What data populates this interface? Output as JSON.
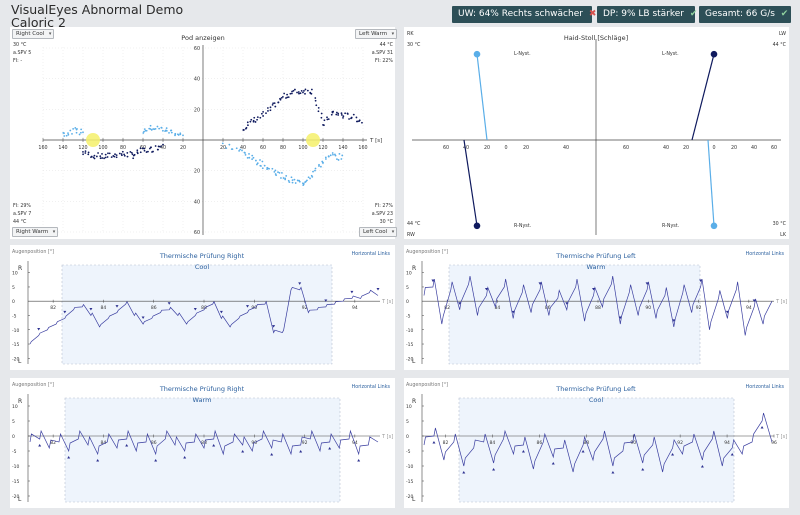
{
  "header": {
    "title_line1": "VisualEyes Abnormal Demo",
    "title_line2": "Caloric 2",
    "badges": [
      {
        "text": "UW: 64% Rechts schwächer",
        "icon": "x-icon",
        "color": "#d9534f"
      },
      {
        "text": "DP: 9% LB stärker",
        "icon": "check-icon",
        "color": "#8fd19e"
      },
      {
        "text": "Gesamt: 66  G/s",
        "icon": "check-icon",
        "color": "#8fd19e"
      }
    ]
  },
  "pod": {
    "title": "Pod anzeigen",
    "dropdowns": {
      "tl": "Right Cool",
      "tr": "Left Warm",
      "bl": "Right Warm",
      "br": "Left Cool"
    },
    "quadrant_info": {
      "tl": [
        "30 °C",
        "a.SPV 5",
        "FI: -"
      ],
      "tr": [
        "44 °C",
        "a.SPV 31",
        "FI: 22%"
      ],
      "bl": [
        "FI: 29%",
        "a.SPV 7",
        "44 °C"
      ],
      "br": [
        "FI: 27%",
        "a.SPV 23",
        "30 °C"
      ]
    },
    "axis_unit": "T [s]",
    "x_ticks_left": [
      "160",
      "140",
      "120",
      "100",
      "80",
      "60",
      "40",
      "20"
    ],
    "x_ticks_right": [
      "20",
      "40",
      "60",
      "80",
      "100",
      "120",
      "140",
      "160"
    ],
    "y_ticks_up": [
      "60",
      "40",
      "20"
    ],
    "y_ticks_down": [
      "20",
      "40",
      "60"
    ]
  },
  "haid": {
    "title": "Haid-Stoll [Schläge]",
    "corners": {
      "tl": "RK",
      "tr": "LW",
      "bl": "RW",
      "br": "LK"
    },
    "temps": {
      "tl": "30 °C",
      "tr": "44 °C",
      "bl": "44 °C",
      "br": "30 °C"
    },
    "labels": {
      "l_nyst_left": "L-Nyst.",
      "l_nyst_right": "L-Nyst.",
      "r_nyst_left": "R-Nyst.",
      "r_nyst_right": "R-Nyst."
    },
    "x_ticks": [
      "60",
      "40",
      "20",
      "0",
      "20",
      "40",
      "60",
      "60",
      "40",
      "20",
      "0",
      "20",
      "40",
      "60"
    ],
    "colors": {
      "cool": "#5aaee8",
      "warm": "#0f1a5e"
    }
  },
  "traces": [
    {
      "title": "Thermische Prüfung Right",
      "sub": "Cool",
      "mode": "Horizontal Links",
      "ylabel": "Augenposition [°]",
      "t_label": "T [s]",
      "x_ticks": [
        "82",
        "84",
        "86",
        "88",
        "90",
        "92",
        "94"
      ],
      "y_ticks": [
        "10",
        "5",
        "0",
        "-5",
        "-10",
        "-15",
        "-20"
      ],
      "r": "R",
      "l": "L"
    },
    {
      "title": "Thermische Prüfung Left",
      "sub": "Warm",
      "mode": "Horizontal Links",
      "ylabel": "Augenposition [°]",
      "t_label": "T [s]",
      "x_ticks": [
        "82",
        "84",
        "86",
        "88",
        "90",
        "92",
        "94"
      ],
      "y_ticks": [
        "10",
        "5",
        "0",
        "-5",
        "-10",
        "-15",
        "-20"
      ],
      "r": "R",
      "l": "L"
    },
    {
      "title": "Thermische Prüfung Right",
      "sub": "Warm",
      "mode": "Horizontal Links",
      "ylabel": "Augenposition [°]",
      "t_label": "T [s]",
      "x_ticks": [
        "82",
        "84",
        "86",
        "88",
        "90",
        "92",
        "94"
      ],
      "y_ticks": [
        "10",
        "5",
        "0",
        "-5",
        "-10",
        "-15",
        "-20"
      ],
      "r": "R",
      "l": "L"
    },
    {
      "title": "Thermische Prüfung Left",
      "sub": "Cool",
      "mode": "Horizontal Links",
      "ylabel": "Augenposition [°]",
      "t_label": "T [s]",
      "x_ticks": [
        "82",
        "84",
        "86",
        "88",
        "90",
        "92",
        "94",
        "96"
      ],
      "y_ticks": [
        "10",
        "5",
        "0",
        "-5",
        "-10",
        "-15",
        "-20"
      ],
      "r": "R",
      "l": "L"
    }
  ],
  "chart_data": [
    {
      "type": "scatter",
      "title": "Pod anzeigen",
      "xlabel": "T [s]",
      "xlim": [
        -160,
        160
      ],
      "ylim": [
        -60,
        60
      ],
      "series": [
        {
          "color": "#0f1a5e",
          "points": [
            [
              -120,
              -8
            ],
            [
              -110,
              -10
            ],
            [
              -100,
              -11
            ],
            [
              -90,
              -10
            ],
            [
              -80,
              -9
            ],
            [
              -70,
              -10
            ],
            [
              -60,
              -7
            ],
            [
              -50,
              -6
            ],
            [
              -40,
              -3
            ],
            [
              40,
              8
            ],
            [
              50,
              12
            ],
            [
              60,
              16
            ],
            [
              70,
              22
            ],
            [
              80,
              28
            ],
            [
              90,
              31
            ],
            [
              100,
              32
            ],
            [
              110,
              32
            ],
            [
              120,
              10
            ],
            [
              130,
              18
            ],
            [
              140,
              16
            ],
            [
              150,
              15
            ],
            [
              160,
              12
            ]
          ]
        },
        {
          "color": "#5aaee8",
          "points": [
            [
              -140,
              4
            ],
            [
              -130,
              6
            ],
            [
              -120,
              5
            ],
            [
              -60,
              6
            ],
            [
              -50,
              8
            ],
            [
              -40,
              7
            ],
            [
              -30,
              5
            ],
            [
              -20,
              3
            ],
            [
              20,
              -3
            ],
            [
              40,
              -8
            ],
            [
              50,
              -12
            ],
            [
              60,
              -16
            ],
            [
              70,
              -20
            ],
            [
              80,
              -24
            ],
            [
              90,
              -27
            ],
            [
              100,
              -28
            ],
            [
              110,
              -22
            ],
            [
              120,
              -14
            ],
            [
              130,
              -10
            ],
            [
              140,
              -12
            ]
          ]
        }
      ]
    },
    {
      "type": "line",
      "title": "Haid-Stoll [Schläge]",
      "series": [
        {
          "name": "L-Nyst.",
          "color": "#5aaee8",
          "points": [
            [
              0,
              60
            ],
            [
              10,
              0
            ]
          ]
        },
        {
          "name": "R-Nyst.",
          "color": "#0f1a5e",
          "points": [
            [
              0,
              -60
            ],
            [
              -13,
              0
            ]
          ]
        },
        {
          "name": "L-Nyst.",
          "color": "#0f1a5e",
          "points": [
            [
              0,
              60
            ],
            [
              -22,
              0
            ]
          ]
        },
        {
          "name": "R-Nyst.",
          "color": "#5aaee8",
          "points": [
            [
              0,
              -60
            ],
            [
              -6,
              0
            ]
          ]
        }
      ]
    },
    {
      "type": "line",
      "title": "Thermische Prüfung Right",
      "xlim": [
        81,
        95
      ],
      "ylim": [
        -22,
        12
      ],
      "values": [
        -15,
        -12,
        -10,
        -8,
        -6,
        -3,
        -2,
        -5,
        -9,
        -6,
        -4,
        -1,
        -5,
        -8,
        -6,
        -4,
        -3,
        -5,
        -8,
        -5,
        -3,
        -1,
        -6,
        -9,
        -6,
        -4,
        -2,
        -1,
        -11,
        -11,
        4,
        4,
        -4,
        -3,
        -2,
        -1,
        0,
        1,
        1,
        3,
        2
      ]
    },
    {
      "type": "line",
      "title": "Thermische Prüfung Left",
      "xlim": [
        81,
        95
      ],
      "ylim": [
        -22,
        12
      ],
      "values": [
        2,
        5,
        -8,
        4,
        -3,
        6,
        -5,
        2,
        -2,
        5,
        -6,
        3,
        -4,
        4,
        -5,
        1,
        -3,
        5,
        -7,
        2,
        -2,
        6,
        -8,
        3,
        -5,
        4,
        -6,
        2,
        -9,
        3,
        -4,
        5,
        -10,
        1,
        -6,
        4,
        -12,
        -2,
        -8,
        0
      ]
    },
    {
      "type": "line",
      "title": "Thermische Prüfung Right",
      "xlim": [
        81,
        95
      ],
      "ylim": [
        -22,
        12
      ],
      "values": [
        -2,
        -1,
        -4,
        -2,
        -5,
        -1,
        -3,
        -6,
        -2,
        -4,
        -1,
        -5,
        -2,
        -6,
        -1,
        -3,
        -5,
        -2,
        -4,
        -1,
        -6,
        -2,
        -3,
        -5,
        -1,
        -4,
        -2,
        -6,
        -3,
        -1,
        -5,
        -2,
        -4,
        -1,
        -6,
        -3,
        -2
      ]
    },
    {
      "type": "line",
      "title": "Thermische Prüfung Left",
      "xlim": [
        81,
        96
      ],
      "ylim": [
        -22,
        12
      ],
      "values": [
        -3,
        0,
        -8,
        -2,
        -10,
        -4,
        -2,
        -9,
        -1,
        -6,
        -3,
        -11,
        -2,
        -7,
        -4,
        -12,
        -3,
        -8,
        -1,
        -10,
        -5,
        -2,
        -9,
        -3,
        -12,
        -4,
        -6,
        -2,
        -8,
        -1,
        -10,
        -4,
        -6,
        -2,
        5,
        -2
      ]
    }
  ]
}
